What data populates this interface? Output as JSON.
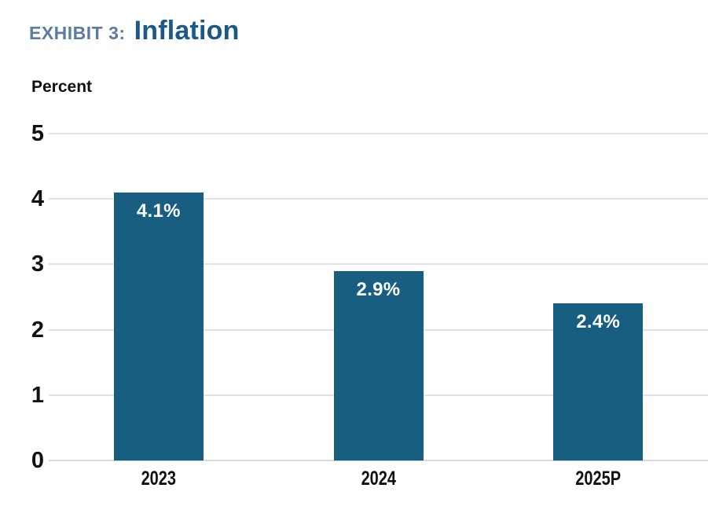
{
  "header": {
    "exhibit_label": "EXHIBIT 3:",
    "title": "Inflation"
  },
  "chart_data": {
    "type": "bar",
    "title": "Inflation",
    "ylabel": "Percent",
    "xlabel": "",
    "categories": [
      "2023",
      "2024",
      "2025P"
    ],
    "values": [
      4.1,
      2.9,
      2.4
    ],
    "value_labels": [
      "4.1%",
      "2.9%",
      "2.4%"
    ],
    "ylim": [
      0,
      5
    ],
    "yticks": [
      0,
      1,
      2,
      3,
      4,
      5
    ],
    "grid": "horizontal",
    "legend_position": "none",
    "colors": {
      "bar": "#175E80",
      "bar_value_label": "#FFFFFF",
      "gridline": "#DDE3E9",
      "baseline": "#D8DDE2",
      "exhibit_label": "#5C7BA1",
      "title": "#1B5A88",
      "axis_text": "#111111"
    }
  }
}
